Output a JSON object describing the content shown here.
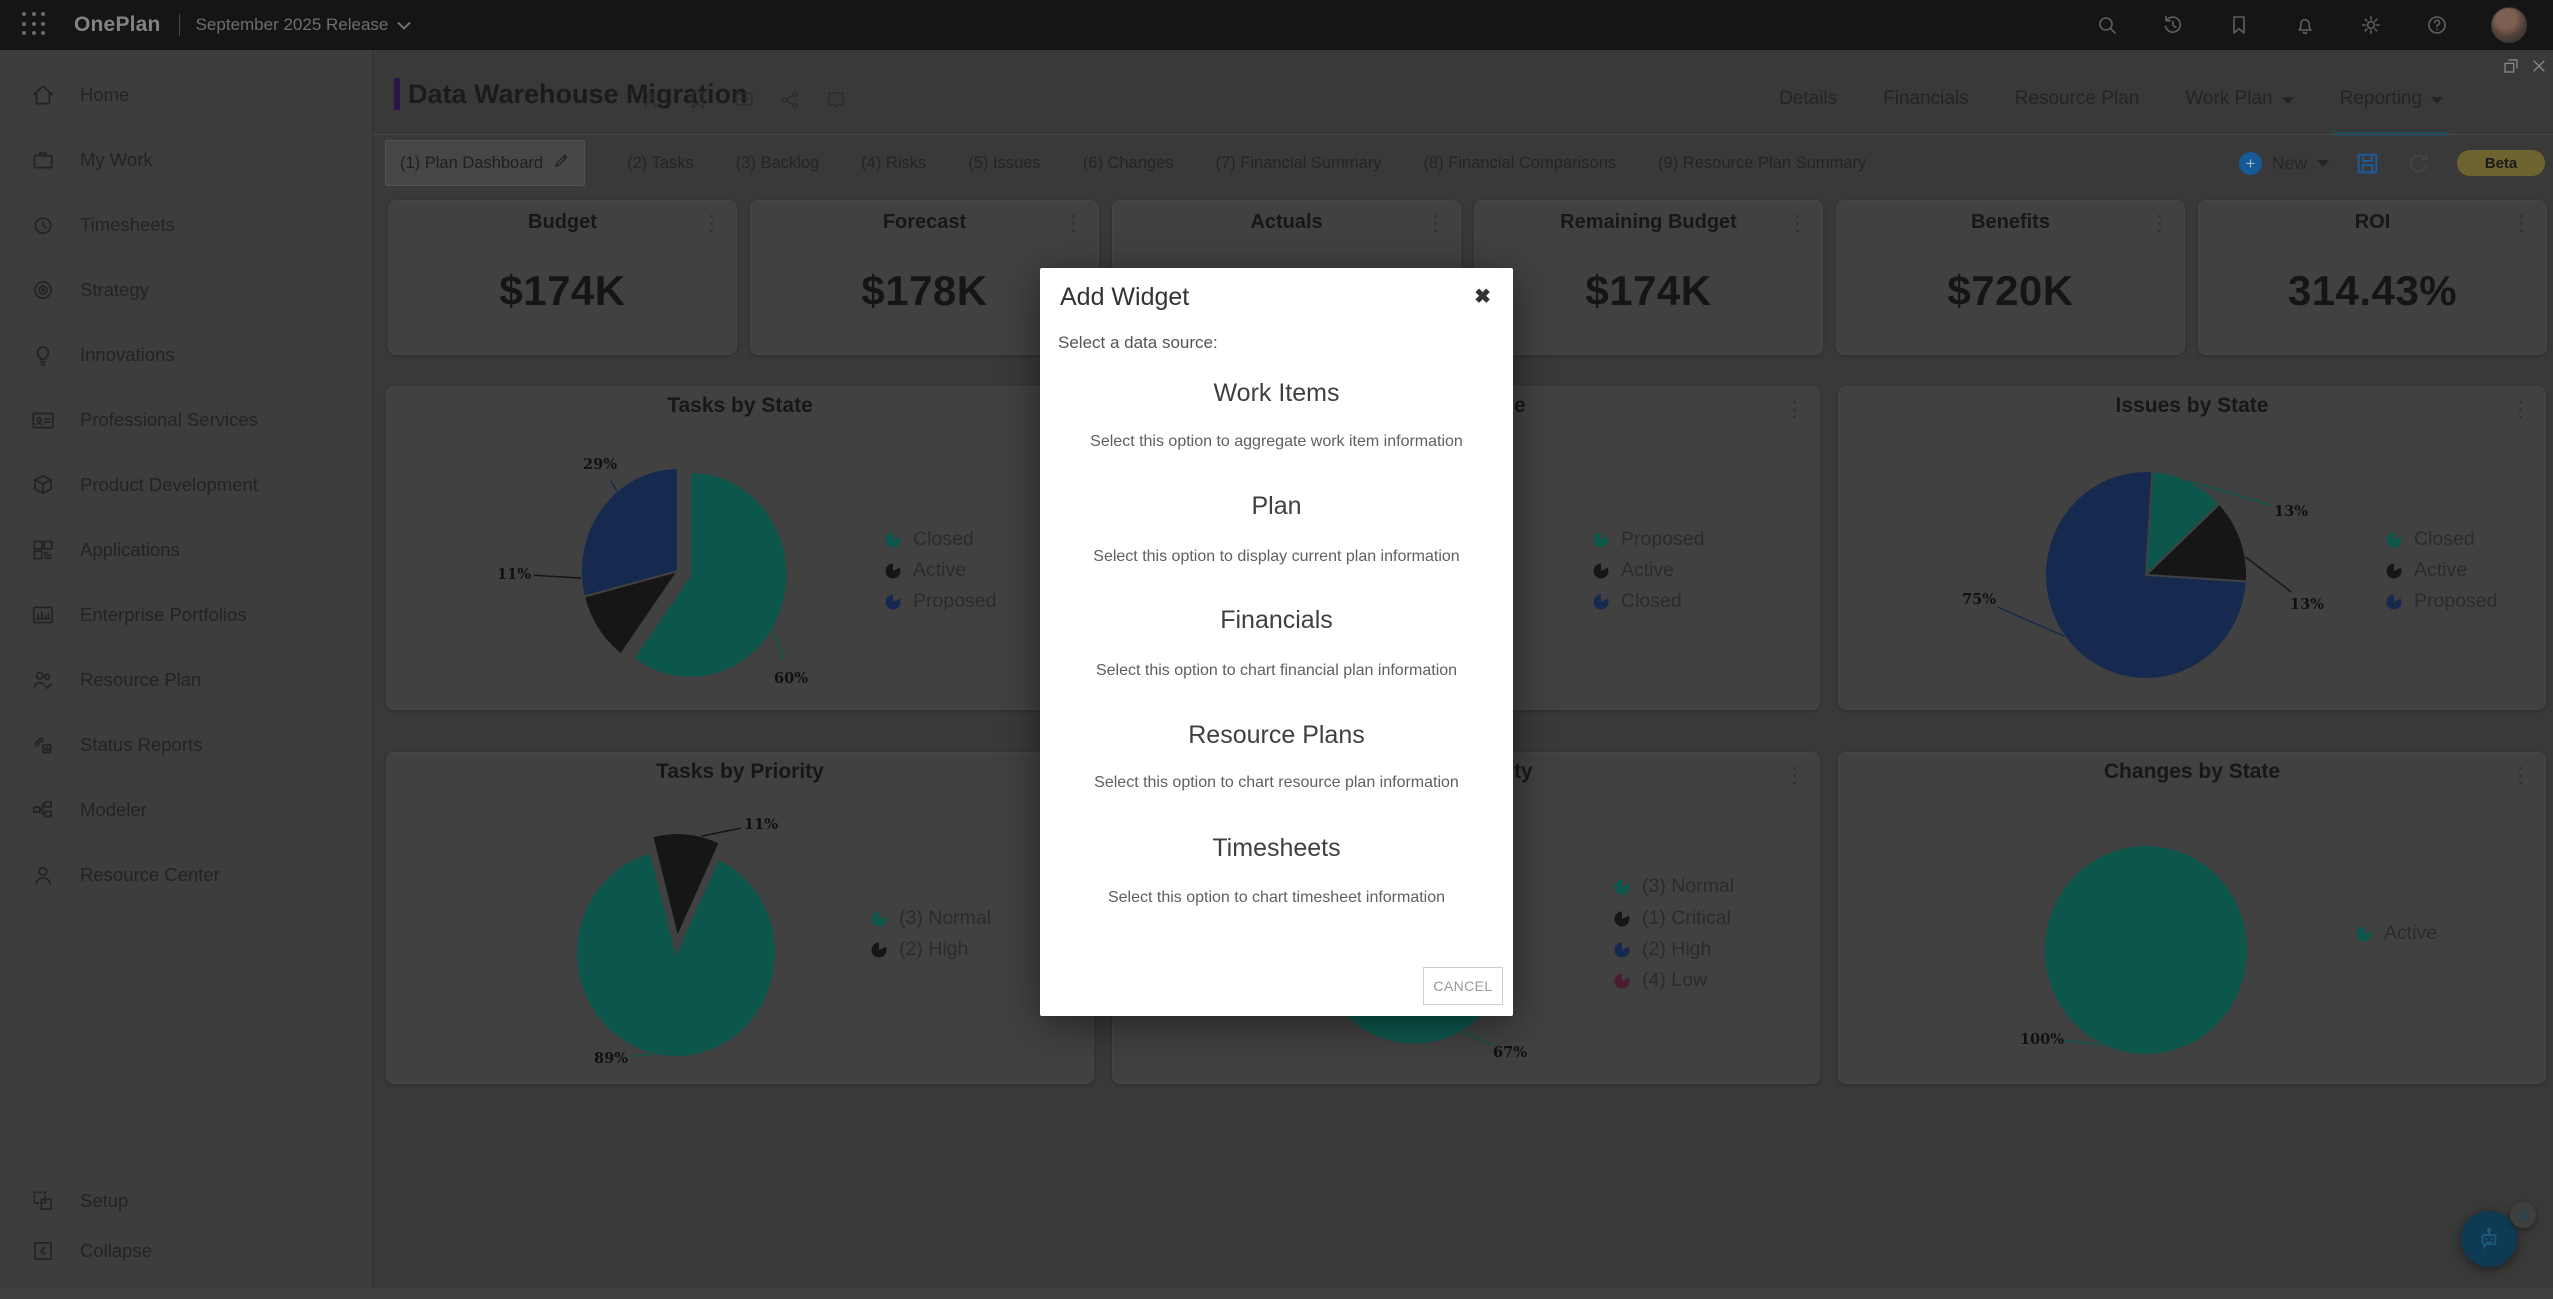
{
  "topbar": {
    "app_name": "OnePlan",
    "release_label": "September 2025 Release",
    "icons": [
      "search",
      "history",
      "bookmark",
      "bell",
      "settings",
      "help"
    ]
  },
  "sidebar": {
    "items": [
      {
        "label": "Home",
        "icon": "home"
      },
      {
        "label": "My Work",
        "icon": "briefcase"
      },
      {
        "label": "Timesheets",
        "icon": "clock"
      },
      {
        "label": "Strategy",
        "icon": "target"
      },
      {
        "label": "Innovations",
        "icon": "lightbulb"
      },
      {
        "label": "Professional Services",
        "icon": "id-card"
      },
      {
        "label": "Product Development",
        "icon": "package"
      },
      {
        "label": "Applications",
        "icon": "grid"
      },
      {
        "label": "Enterprise Portfolios",
        "icon": "chart-box"
      },
      {
        "label": "Resource Plan",
        "icon": "people-check"
      },
      {
        "label": "Status Reports",
        "icon": "report"
      },
      {
        "label": "Modeler",
        "icon": "org-chart"
      },
      {
        "label": "Resource Center",
        "icon": "person"
      }
    ],
    "footer_items": [
      {
        "label": "Setup",
        "icon": "setup"
      },
      {
        "label": "Collapse",
        "icon": "collapse"
      }
    ]
  },
  "header": {
    "title": "Data Warehouse Migration",
    "title_icons": [
      "person-check",
      "bookmark",
      "comment",
      "share",
      "flag"
    ],
    "nav": [
      {
        "label": "Details",
        "dropdown": false,
        "active": false
      },
      {
        "label": "Financials",
        "dropdown": false,
        "active": false
      },
      {
        "label": "Resource Plan",
        "dropdown": false,
        "active": false
      },
      {
        "label": "Work Plan",
        "dropdown": true,
        "active": false
      },
      {
        "label": "Reporting",
        "dropdown": true,
        "active": true
      }
    ]
  },
  "toolbar": {
    "tabs": [
      "(1) Plan Dashboard",
      "(2) Tasks",
      "(3) Backlog",
      "(4) Risks",
      "(5) Issues",
      "(6) Changes",
      "(7) Financial Summary",
      "(8) Financial Comparisons",
      "(9) Resource Plan Summary"
    ],
    "active_tab_index": 0,
    "new_label": "New",
    "beta_label": "Beta"
  },
  "kpis": [
    {
      "title": "Budget",
      "value": "$174K"
    },
    {
      "title": "Forecast",
      "value": "$178K"
    },
    {
      "title": "Actuals",
      "value": ""
    },
    {
      "title": "Remaining Budget",
      "value": "$174K"
    },
    {
      "title": "Benefits",
      "value": "$720K"
    },
    {
      "title": "ROI",
      "value": "314.43%"
    }
  ],
  "chart_data": [
    {
      "id": "tasks-by-state",
      "type": "pie",
      "title": "Tasks by State",
      "legend_position": "right",
      "slices": [
        {
          "name": "Closed",
          "value": 60,
          "label": "60%",
          "color": "#0d564c",
          "exploded": true
        },
        {
          "name": "Active",
          "value": 11,
          "label": "11%",
          "color": "#161616",
          "exploded": false
        },
        {
          "name": "Proposed",
          "value": 29,
          "label": "29%",
          "color": "#16294e",
          "exploded": false
        }
      ]
    },
    {
      "id": "risks-by-state",
      "type": "pie",
      "title_visible_fragment": "e",
      "hidden_behind_dialog": true,
      "legend_position": "right",
      "legend": [
        {
          "name": "Proposed",
          "color": "#0d564c"
        },
        {
          "name": "Active",
          "color": "#161616"
        },
        {
          "name": "Closed",
          "color": "#16294e"
        }
      ]
    },
    {
      "id": "issues-by-state",
      "type": "pie",
      "title": "Issues by State",
      "legend_position": "right",
      "slices": [
        {
          "name": "Closed",
          "value": 13,
          "label": "13%",
          "color": "#0d564c",
          "exploded": false
        },
        {
          "name": "Active",
          "value": 13,
          "label": "13%",
          "color": "#161616",
          "exploded": false
        },
        {
          "name": "Proposed",
          "value": 75,
          "label": "75%",
          "color": "#16294e",
          "exploded": false
        }
      ]
    },
    {
      "id": "tasks-by-priority",
      "type": "pie",
      "title": "Tasks by Priority",
      "legend_position": "right",
      "slices": [
        {
          "name": "(3) Normal",
          "value": 89,
          "label": "89%",
          "color": "#0d564c",
          "exploded": false
        },
        {
          "name": "(2) High",
          "value": 11,
          "label": "11%",
          "color": "#161616",
          "exploded": true
        }
      ]
    },
    {
      "id": "priority-chart-partial",
      "type": "pie",
      "title_visible_fragment": "ty",
      "hidden_behind_dialog": true,
      "visible_label": "67%",
      "visible_slice_color": "#0d564c",
      "legend_position": "right",
      "legend": [
        {
          "name": "(3) Normal",
          "color": "#0d564c"
        },
        {
          "name": "(1) Critical",
          "color": "#161616"
        },
        {
          "name": "(2) High",
          "color": "#16294e"
        },
        {
          "name": "(4) Low",
          "color": "#4c1d30"
        }
      ]
    },
    {
      "id": "changes-by-state",
      "type": "pie",
      "title": "Changes by State",
      "legend_position": "right",
      "slices": [
        {
          "name": "Active",
          "value": 100,
          "label": "100%",
          "color": "#0d564c",
          "exploded": false
        }
      ]
    }
  ],
  "modal": {
    "title": "Add Widget",
    "subtitle": "Select a data source:",
    "options": [
      {
        "name": "Work Items",
        "description": "Select this option to aggregate work item information"
      },
      {
        "name": "Plan",
        "description": "Select this option to display current plan information"
      },
      {
        "name": "Financials",
        "description": "Select this option to chart financial plan information"
      },
      {
        "name": "Resource Plans",
        "description": "Select this option to chart resource plan information"
      },
      {
        "name": "Timesheets",
        "description": "Select this option to chart timesheet information"
      }
    ],
    "cancel_label": "CANCEL"
  },
  "colors": {
    "teal": "#0d564c",
    "black": "#161616",
    "navy": "#16294e",
    "maroon": "#4c1d30",
    "accent_blue": "#1d5b9c",
    "beta_bg": "#6e6430",
    "purple_bar": "#2a1745",
    "reporting_underline": "#1d4a5c",
    "card_bg": "#414141"
  }
}
